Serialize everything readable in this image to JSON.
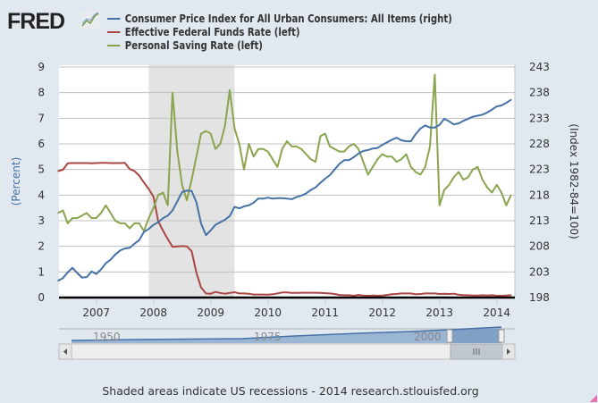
{
  "logo": "FRED",
  "legend": [
    {
      "label": "Consumer Price Index for All Urban Consumers: All Items (right)",
      "color": "#4572a7"
    },
    {
      "label": "Effective Federal Funds Rate (left)",
      "color": "#aa4643"
    },
    {
      "label": "Personal Saving Rate (left)",
      "color": "#89a54e"
    }
  ],
  "chart_data": {
    "type": "line",
    "ylabel_left": "(Percent)",
    "ylabel_right": "(Index 1982-84=100)",
    "ylim_left": [
      0,
      9
    ],
    "ylim_right": [
      198,
      243
    ],
    "yticks_left": [
      "0",
      "1",
      "2",
      "3",
      "4",
      "5",
      "6",
      "7",
      "8",
      "9"
    ],
    "yticks_right": [
      "198",
      "203",
      "208",
      "213",
      "218",
      "223",
      "228",
      "233",
      "238",
      "243"
    ],
    "xticks": [
      "2007",
      "2008",
      "2009",
      "2010",
      "2011",
      "2012",
      "2013",
      "2014"
    ],
    "grid": true,
    "recession": {
      "start": "2007-12",
      "end": "2009-06"
    },
    "x": [
      "2006-05",
      "2006-06",
      "2006-07",
      "2006-08",
      "2006-09",
      "2006-10",
      "2006-11",
      "2006-12",
      "2007-01",
      "2007-02",
      "2007-03",
      "2007-04",
      "2007-05",
      "2007-06",
      "2007-07",
      "2007-08",
      "2007-09",
      "2007-10",
      "2007-11",
      "2007-12",
      "2008-01",
      "2008-02",
      "2008-03",
      "2008-04",
      "2008-05",
      "2008-06",
      "2008-07",
      "2008-08",
      "2008-09",
      "2008-10",
      "2008-11",
      "2008-12",
      "2009-01",
      "2009-02",
      "2009-03",
      "2009-04",
      "2009-05",
      "2009-06",
      "2009-07",
      "2009-08",
      "2009-09",
      "2009-10",
      "2009-11",
      "2009-12",
      "2010-01",
      "2010-02",
      "2010-03",
      "2010-04",
      "2010-05",
      "2010-06",
      "2010-07",
      "2010-08",
      "2010-09",
      "2010-10",
      "2010-11",
      "2010-12",
      "2011-01",
      "2011-02",
      "2011-03",
      "2011-04",
      "2011-05",
      "2011-06",
      "2011-07",
      "2011-08",
      "2011-09",
      "2011-10",
      "2011-11",
      "2011-12",
      "2012-01",
      "2012-02",
      "2012-03",
      "2012-04",
      "2012-05",
      "2012-06",
      "2012-07",
      "2012-08",
      "2012-09",
      "2012-10",
      "2012-11",
      "2012-12",
      "2013-01",
      "2013-02",
      "2013-03",
      "2013-04",
      "2013-05",
      "2013-06",
      "2013-07",
      "2013-08",
      "2013-09",
      "2013-10",
      "2013-11",
      "2013-12",
      "2014-01",
      "2014-02",
      "2014-03",
      "2014-04"
    ],
    "series": [
      {
        "name": "Consumer Price Index for All Urban Consumers: All Items",
        "axis": "right",
        "color": "#4572a7",
        "values": [
          201.3,
          201.8,
          202.9,
          203.8,
          202.8,
          201.9,
          202.0,
          203.1,
          202.6,
          203.5,
          204.7,
          205.4,
          206.4,
          207.2,
          207.6,
          207.7,
          208.5,
          209.2,
          210.8,
          211.4,
          212.2,
          212.7,
          213.5,
          214.0,
          215.0,
          216.8,
          218.6,
          218.9,
          218.8,
          216.6,
          212.4,
          210.2,
          211.1,
          212.2,
          212.7,
          213.2,
          213.9,
          215.7,
          215.4,
          215.8,
          216.0,
          216.5,
          217.3,
          217.3,
          217.5,
          217.3,
          217.4,
          217.4,
          217.3,
          217.2,
          217.6,
          217.9,
          218.3,
          219.0,
          219.5,
          220.4,
          221.2,
          221.9,
          223.0,
          224.1,
          224.8,
          224.8,
          225.4,
          226.1,
          226.6,
          226.8,
          227.1,
          227.2,
          227.8,
          228.3,
          228.8,
          229.2,
          228.7,
          228.5,
          228.5,
          229.9,
          231.0,
          231.6,
          231.2,
          231.2,
          231.7,
          232.9,
          232.4,
          231.8,
          232.0,
          232.5,
          232.9,
          233.3,
          233.5,
          233.7,
          234.1,
          234.7,
          235.3,
          235.5,
          236.0,
          236.6
        ]
      },
      {
        "name": "Effective Federal Funds Rate",
        "axis": "left",
        "color": "#aa4643",
        "values": [
          4.94,
          4.99,
          5.24,
          5.25,
          5.25,
          5.25,
          5.25,
          5.24,
          5.25,
          5.26,
          5.26,
          5.25,
          5.25,
          5.25,
          5.26,
          5.02,
          4.94,
          4.76,
          4.49,
          4.24,
          3.94,
          2.98,
          2.61,
          2.28,
          1.98,
          2.0,
          2.01,
          2.0,
          1.81,
          0.97,
          0.39,
          0.16,
          0.15,
          0.22,
          0.18,
          0.15,
          0.18,
          0.21,
          0.16,
          0.16,
          0.15,
          0.12,
          0.12,
          0.12,
          0.11,
          0.13,
          0.16,
          0.2,
          0.2,
          0.18,
          0.18,
          0.19,
          0.19,
          0.19,
          0.19,
          0.18,
          0.17,
          0.16,
          0.14,
          0.1,
          0.09,
          0.09,
          0.07,
          0.1,
          0.08,
          0.07,
          0.08,
          0.07,
          0.08,
          0.1,
          0.13,
          0.14,
          0.16,
          0.16,
          0.16,
          0.13,
          0.14,
          0.16,
          0.16,
          0.16,
          0.14,
          0.15,
          0.14,
          0.15,
          0.11,
          0.09,
          0.09,
          0.08,
          0.08,
          0.09,
          0.08,
          0.09,
          0.07,
          0.07,
          0.08,
          0.09
        ]
      },
      {
        "name": "Personal Saving Rate",
        "axis": "left",
        "color": "#89a54e",
        "values": [
          3.3,
          3.4,
          2.9,
          3.1,
          3.1,
          3.2,
          3.3,
          3.1,
          3.1,
          3.3,
          3.6,
          3.3,
          3.0,
          2.9,
          2.9,
          2.7,
          2.9,
          2.9,
          2.6,
          3.1,
          3.5,
          4.0,
          4.1,
          3.6,
          8.0,
          5.7,
          4.4,
          3.8,
          4.6,
          5.5,
          6.4,
          6.5,
          6.4,
          5.8,
          6.0,
          6.7,
          8.1,
          6.6,
          6.0,
          5.0,
          6.0,
          5.5,
          5.8,
          5.8,
          5.7,
          5.4,
          5.1,
          5.8,
          6.1,
          5.9,
          5.9,
          5.8,
          5.6,
          5.4,
          5.3,
          6.3,
          6.4,
          5.9,
          5.8,
          5.7,
          5.7,
          5.9,
          6.0,
          5.8,
          5.3,
          4.8,
          5.1,
          5.4,
          5.6,
          5.5,
          5.5,
          5.3,
          5.4,
          5.6,
          5.1,
          4.9,
          4.8,
          5.1,
          5.9,
          8.7,
          3.6,
          4.2,
          4.4,
          4.7,
          4.9,
          4.6,
          4.7,
          5.0,
          5.1,
          4.6,
          4.3,
          4.1,
          4.4,
          4.1,
          3.6,
          4.0
        ]
      }
    ]
  },
  "navigator": {
    "labels": [
      "1950",
      "1975",
      "2000"
    ]
  },
  "footer": "Shaded areas indicate US recessions - 2014 research.stlouisfed.org"
}
